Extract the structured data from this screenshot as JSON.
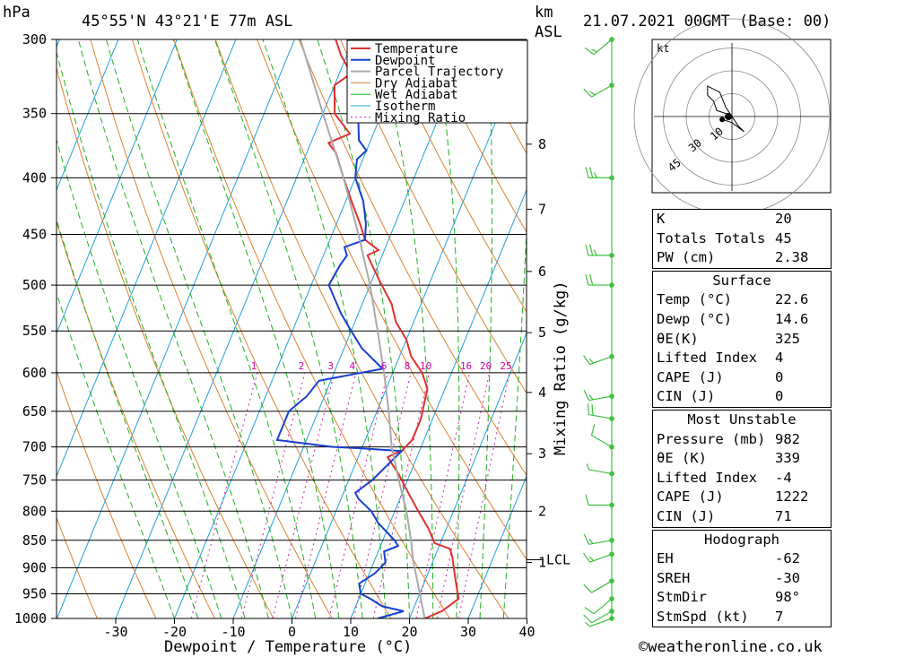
{
  "header": {
    "left_unit": "hPa",
    "location": "45°55'N  43°21'E  77m  ASL",
    "km_label": "km",
    "asl_label": "ASL",
    "datetime": "21.07.2021  00GMT  (Base: 00)"
  },
  "chart_data": {
    "type": "line",
    "title": "45°55'N  43°21'E  77m  ASL",
    "xlabel": "Dewpoint / Temperature (°C)",
    "ylabel": "hPa",
    "ylabel_right": "Mixing Ratio (g/kg)",
    "xlim": [
      -40,
      40
    ],
    "ylim": [
      1000,
      300
    ],
    "y_scale": "log",
    "x_ticks": [
      -30,
      -20,
      -10,
      0,
      10,
      20,
      30,
      40
    ],
    "pressure_ticks": [
      300,
      350,
      400,
      450,
      500,
      550,
      600,
      650,
      700,
      750,
      800,
      850,
      900,
      950,
      1000
    ],
    "km_ticks": [
      {
        "label": "1",
        "p": 890
      },
      {
        "label": "2",
        "p": 800
      },
      {
        "label": "3",
        "p": 710
      },
      {
        "label": "4",
        "p": 625
      },
      {
        "label": "5",
        "p": 552
      },
      {
        "label": "6",
        "p": 486
      },
      {
        "label": "7",
        "p": 427
      },
      {
        "label": "8",
        "p": 373
      }
    ],
    "lcl": {
      "label": "LCL",
      "p": 885
    },
    "mixing_ratio_labels": [
      "1",
      "2",
      "3",
      "4",
      "6",
      "8",
      "10",
      "16",
      "20",
      "25"
    ],
    "legend": [
      "Temperature",
      "Dewpoint",
      "Parcel Trajectory",
      "Dry Adiabat",
      "Wet Adiabat",
      "Isotherm",
      "Mixing Ratio"
    ],
    "legend_position": "top-right",
    "colors": {
      "temperature": "#e03030",
      "dewpoint": "#1840d0",
      "parcel": "#aaaaaa",
      "dry_adiabat": "#e08030",
      "wet_adiabat": "#20b020",
      "isotherm": "#20a0e0",
      "mixing_ratio": "#d020b0",
      "wind": "#40c040"
    },
    "series": [
      {
        "name": "Temperature",
        "points": [
          [
            1000,
            22.6
          ],
          [
            985,
            25
          ],
          [
            960,
            27
          ],
          [
            940,
            26
          ],
          [
            920,
            25
          ],
          [
            900,
            24
          ],
          [
            880,
            23
          ],
          [
            865,
            22
          ],
          [
            855,
            19
          ],
          [
            830,
            17
          ],
          [
            800,
            14
          ],
          [
            770,
            11
          ],
          [
            740,
            8
          ],
          [
            715,
            5
          ],
          [
            705,
            7
          ],
          [
            690,
            8
          ],
          [
            660,
            8
          ],
          [
            620,
            7
          ],
          [
            600,
            5
          ],
          [
            580,
            2
          ],
          [
            560,
            0
          ],
          [
            540,
            -3
          ],
          [
            520,
            -5
          ],
          [
            500,
            -8
          ],
          [
            480,
            -11
          ],
          [
            470,
            -12.5
          ],
          [
            465,
            -11
          ],
          [
            455,
            -14
          ],
          [
            440,
            -16
          ],
          [
            420,
            -19
          ],
          [
            400,
            -22
          ],
          [
            380,
            -25
          ],
          [
            372,
            -27
          ],
          [
            365,
            -24
          ],
          [
            350,
            -28
          ],
          [
            330,
            -30
          ],
          [
            322,
            -28
          ],
          [
            310,
            -31
          ],
          [
            300,
            -33
          ]
        ]
      },
      {
        "name": "Dewpoint",
        "points": [
          [
            1000,
            14.6
          ],
          [
            985,
            18.5
          ],
          [
            975,
            14.5
          ],
          [
            960,
            12
          ],
          [
            950,
            10
          ],
          [
            930,
            9
          ],
          [
            910,
            11
          ],
          [
            890,
            12
          ],
          [
            870,
            11
          ],
          [
            860,
            13
          ],
          [
            850,
            12
          ],
          [
            820,
            8
          ],
          [
            800,
            6
          ],
          [
            780,
            3
          ],
          [
            770,
            2
          ],
          [
            750,
            4
          ],
          [
            720,
            6
          ],
          [
            706,
            7
          ],
          [
            702,
            0
          ],
          [
            700,
            -5
          ],
          [
            695,
            -10
          ],
          [
            690,
            -15
          ],
          [
            660,
            -15
          ],
          [
            650,
            -15
          ],
          [
            630,
            -13
          ],
          [
            610,
            -12
          ],
          [
            595,
            -2
          ],
          [
            590,
            -3
          ],
          [
            570,
            -7
          ],
          [
            550,
            -10
          ],
          [
            530,
            -13
          ],
          [
            500,
            -17
          ],
          [
            480,
            -16.5
          ],
          [
            470,
            -16
          ],
          [
            462,
            -17
          ],
          [
            455,
            -14
          ],
          [
            440,
            -15
          ],
          [
            420,
            -17
          ],
          [
            400,
            -20
          ],
          [
            385,
            -21
          ],
          [
            378,
            -20
          ],
          [
            370,
            -22
          ],
          [
            350,
            -24
          ],
          [
            330,
            -25
          ],
          [
            322,
            -25
          ],
          [
            318,
            -26
          ],
          [
            310,
            -27
          ],
          [
            300,
            -28
          ]
        ]
      },
      {
        "name": "Parcel Trajectory",
        "points": [
          [
            1000,
            22.6
          ],
          [
            885,
            16.5
          ],
          [
            850,
            14.8
          ],
          [
            800,
            12
          ],
          [
            750,
            8.5
          ],
          [
            700,
            5
          ],
          [
            650,
            2
          ],
          [
            600,
            -1.5
          ],
          [
            550,
            -5.5
          ],
          [
            500,
            -10
          ],
          [
            450,
            -15.5
          ],
          [
            400,
            -22
          ],
          [
            350,
            -30
          ],
          [
            300,
            -39
          ]
        ]
      }
    ],
    "wind_barbs": [
      {
        "p": 1000,
        "dir": 250,
        "kt": 7
      },
      {
        "p": 985,
        "dir": 240,
        "kt": 10
      },
      {
        "p": 960,
        "dir": 230,
        "kt": 10
      },
      {
        "p": 925,
        "dir": 240,
        "kt": 10
      },
      {
        "p": 875,
        "dir": 250,
        "kt": 15
      },
      {
        "p": 850,
        "dir": 260,
        "kt": 15
      },
      {
        "p": 790,
        "dir": 270,
        "kt": 10
      },
      {
        "p": 740,
        "dir": 280,
        "kt": 5
      },
      {
        "p": 700,
        "dir": 300,
        "kt": 10
      },
      {
        "p": 660,
        "dir": 280,
        "kt": 20
      },
      {
        "p": 630,
        "dir": 260,
        "kt": 15
      },
      {
        "p": 580,
        "dir": 250,
        "kt": 15
      },
      {
        "p": 500,
        "dir": 270,
        "kt": 20
      },
      {
        "p": 470,
        "dir": 270,
        "kt": 25
      },
      {
        "p": 400,
        "dir": 270,
        "kt": 25
      },
      {
        "p": 330,
        "dir": 240,
        "kt": 15
      },
      {
        "p": 300,
        "dir": 230,
        "kt": 15
      }
    ],
    "hodograph": {
      "unit": "kt",
      "ring_labels": [
        "10",
        "30",
        "45"
      ],
      "trace": [
        [
          0,
          0
        ],
        [
          -2,
          1
        ],
        [
          -5,
          2
        ],
        [
          -6,
          5
        ],
        [
          -8,
          7
        ],
        [
          -8,
          10
        ],
        [
          -4,
          8
        ],
        [
          -2,
          3
        ],
        [
          2,
          -3
        ],
        [
          4,
          -5
        ],
        [
          0,
          -2
        ],
        [
          -3,
          -1
        ]
      ],
      "storm_motion": [
        -8,
        -1
      ]
    }
  },
  "indices": [
    {
      "label": "K",
      "value": "20"
    },
    {
      "label": "Totals Totals",
      "value": "45"
    },
    {
      "label": "PW (cm)",
      "value": "2.38"
    }
  ],
  "surface": {
    "title": "Surface",
    "rows": [
      {
        "label": "Temp (°C)",
        "value": "22.6"
      },
      {
        "label": "Dewp (°C)",
        "value": "14.6"
      },
      {
        "label": "θE(K)",
        "value": "325"
      },
      {
        "label": "Lifted Index",
        "value": "4"
      },
      {
        "label": "CAPE (J)",
        "value": "0"
      },
      {
        "label": "CIN (J)",
        "value": "0"
      }
    ]
  },
  "most_unstable": {
    "title": "Most Unstable",
    "rows": [
      {
        "label": "Pressure (mb)",
        "value": "982"
      },
      {
        "label": "θE (K)",
        "value": "339"
      },
      {
        "label": "Lifted Index",
        "value": "-4"
      },
      {
        "label": "CAPE (J)",
        "value": "1222"
      },
      {
        "label": "CIN (J)",
        "value": "71"
      }
    ]
  },
  "hodograph_box": {
    "title": "Hodograph",
    "rows": [
      {
        "label": "EH",
        "value": "-62"
      },
      {
        "label": "SREH",
        "value": "-30"
      },
      {
        "label": "StmDir",
        "value": "98°"
      },
      {
        "label": "StmSpd (kt)",
        "value": "7"
      }
    ]
  },
  "credit": "©weatheronline.co.uk"
}
